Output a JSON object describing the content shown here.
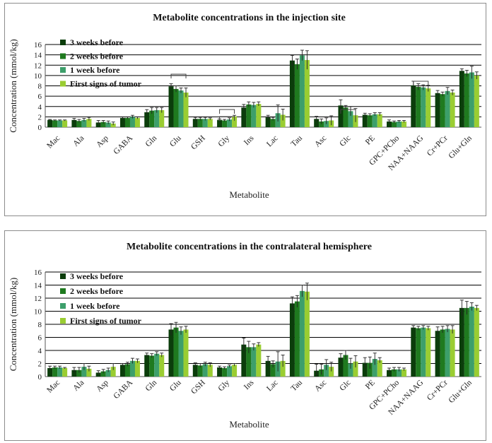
{
  "chart_data": [
    {
      "type": "bar",
      "title": "Metabolite concentrations in the injection site",
      "xlabel": "Metabolite",
      "ylabel": "Concentration (mmol/kg)",
      "ylim": [
        0,
        16
      ],
      "yticks": [
        "0",
        "2",
        "4",
        "6",
        "8",
        "10",
        "12",
        "14",
        "16"
      ],
      "grid": true,
      "legend_position": "top-left",
      "categories": [
        "Mac",
        "Ala",
        "Asp",
        "GABA",
        "Gln",
        "Glu",
        "GSH",
        "Gly",
        "Ins",
        "Lac",
        "Tau",
        "Asc",
        "Glc",
        "PE",
        "GPC+PCho",
        "NAA+NAAG",
        "Cr+PCr",
        "Glu+Gln"
      ],
      "series": [
        {
          "name": "3 weeks before",
          "color": "#0b3d0b",
          "values": [
            1.4,
            1.4,
            0.9,
            1.8,
            2.9,
            7.9,
            1.6,
            1.4,
            3.8,
            1.9,
            12.9,
            1.6,
            4.2,
            2.4,
            1.1,
            8.1,
            6.6,
            10.9
          ],
          "errors": [
            0.1,
            0.3,
            0.4,
            0.2,
            0.5,
            0.5,
            0.3,
            0.2,
            0.6,
            0.4,
            1.0,
            0.5,
            1.1,
            0.3,
            0.3,
            0.8,
            0.5,
            0.4
          ]
        },
        {
          "name": "2 weeks before",
          "color": "#1f7a1f",
          "values": [
            1.3,
            1.2,
            1.0,
            1.8,
            3.2,
            7.4,
            1.6,
            1.3,
            4.4,
            1.6,
            12.2,
            1.1,
            3.8,
            2.3,
            1.0,
            7.8,
            6.4,
            10.4
          ],
          "errors": [
            0.1,
            0.3,
            0.3,
            0.2,
            0.6,
            0.6,
            0.3,
            0.2,
            0.5,
            0.3,
            1.0,
            0.5,
            0.4,
            0.3,
            0.2,
            0.6,
            0.4,
            0.6
          ]
        },
        {
          "name": "1 week before",
          "color": "#3d9f6b",
          "values": [
            1.3,
            1.4,
            0.9,
            2.0,
            3.3,
            7.1,
            1.6,
            1.5,
            4.3,
            2.7,
            13.9,
            1.2,
            3.1,
            2.5,
            1.1,
            7.7,
            7.0,
            10.6
          ],
          "errors": [
            0.1,
            0.3,
            0.3,
            0.3,
            0.5,
            0.5,
            0.3,
            0.3,
            0.5,
            1.6,
            1.0,
            0.6,
            0.9,
            0.3,
            0.2,
            0.5,
            0.7,
            1.2
          ]
        },
        {
          "name": "First signs of tumor",
          "color": "#9acd32",
          "values": [
            1.3,
            1.6,
            0.7,
            1.8,
            3.3,
            6.7,
            1.6,
            2.1,
            4.5,
            2.4,
            13.0,
            1.3,
            2.3,
            2.5,
            1.1,
            7.5,
            6.7,
            10.0
          ],
          "errors": [
            0.1,
            0.3,
            0.3,
            0.2,
            0.5,
            0.9,
            0.2,
            0.2,
            0.4,
            1.1,
            1.8,
            0.9,
            1.3,
            0.3,
            0.2,
            0.6,
            0.5,
            0.7
          ]
        }
      ]
    },
    {
      "type": "bar",
      "title": "Metabolite concentrations in the contralateral hemisphere",
      "xlabel": "Metabolite",
      "ylabel": "Concentration (mmol/kg)",
      "ylim": [
        0,
        16
      ],
      "yticks": [
        "0",
        "2",
        "4",
        "6",
        "8",
        "10",
        "12",
        "14",
        "16"
      ],
      "grid": true,
      "legend_position": "top-left",
      "categories": [
        "Mac",
        "Ala",
        "Asp",
        "GABA",
        "Gln",
        "Glu",
        "GSH",
        "Gly",
        "Ins",
        "Lac",
        "Tau",
        "Asc",
        "Glc",
        "PE",
        "GPC+PCho",
        "NAA+NAAG",
        "Cr+PCr",
        "Glu+Gln"
      ],
      "series": [
        {
          "name": "3 weeks before",
          "color": "#0b3d0b",
          "values": [
            1.3,
            1.0,
            0.6,
            1.8,
            3.3,
            7.2,
            1.8,
            1.4,
            4.9,
            2.4,
            11.2,
            0.9,
            2.9,
            2.1,
            1.0,
            7.5,
            7.0,
            10.5
          ],
          "errors": [
            0.3,
            0.4,
            0.3,
            0.2,
            0.3,
            0.9,
            0.3,
            0.2,
            1.0,
            0.7,
            1.0,
            1.0,
            0.6,
            0.8,
            0.3,
            0.3,
            0.6,
            1.2
          ]
        },
        {
          "name": "2 weeks before",
          "color": "#1f7a1f",
          "values": [
            1.4,
            1.0,
            0.8,
            1.9,
            3.2,
            7.5,
            1.7,
            1.3,
            4.5,
            1.9,
            11.5,
            1.1,
            3.3,
            2.1,
            1.1,
            7.4,
            7.2,
            10.5
          ],
          "errors": [
            0.2,
            0.4,
            0.3,
            0.3,
            0.3,
            0.8,
            0.3,
            0.2,
            0.9,
            0.5,
            0.9,
            0.8,
            0.7,
            0.9,
            0.3,
            0.3,
            0.5,
            1.0
          ]
        },
        {
          "name": "1 week before",
          "color": "#3d9f6b",
          "values": [
            1.4,
            1.5,
            1.0,
            2.4,
            3.5,
            7.0,
            1.9,
            1.6,
            4.5,
            2.3,
            13.1,
            1.8,
            2.0,
            2.7,
            1.1,
            7.5,
            7.3,
            10.7
          ],
          "errors": [
            0.2,
            0.5,
            0.3,
            0.4,
            0.3,
            0.6,
            0.3,
            0.2,
            0.5,
            1.5,
            0.9,
            0.8,
            0.8,
            0.9,
            0.3,
            0.3,
            0.5,
            0.6
          ]
        },
        {
          "name": "First signs of tumor",
          "color": "#9acd32",
          "values": [
            1.3,
            1.2,
            1.5,
            2.4,
            3.3,
            7.2,
            1.8,
            1.8,
            4.9,
            2.4,
            13.0,
            1.5,
            2.3,
            2.5,
            1.1,
            7.4,
            7.2,
            10.5
          ],
          "errors": [
            0.1,
            0.4,
            0.5,
            0.3,
            0.3,
            0.5,
            0.3,
            0.2,
            0.3,
            0.9,
            1.3,
            0.7,
            0.9,
            0.4,
            0.2,
            0.3,
            0.6,
            0.4
          ]
        }
      ]
    }
  ]
}
